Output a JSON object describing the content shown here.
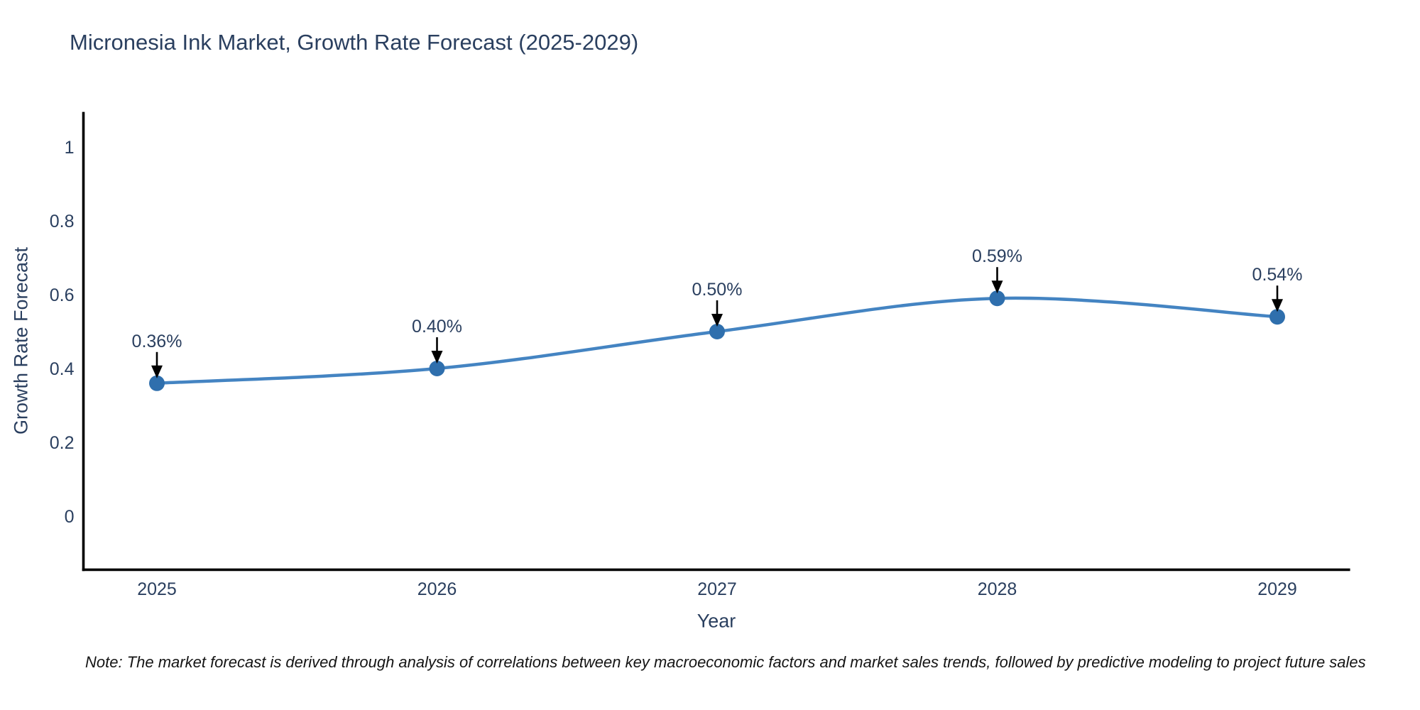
{
  "figure": {
    "title": "Micronesia Ink Market, Growth Rate Forecast (2025-2029)",
    "xlabel": "Year",
    "ylabel": "Growth Rate Forecast",
    "note": "Note: The market forecast is derived through analysis of correlations between key macroeconomic factors and market sales trends, followed by predictive modeling to project future sales"
  },
  "chart_data": {
    "type": "line",
    "title": "Micronesia Ink Market, Growth Rate Forecast (2025-2029)",
    "xlabel": "Year",
    "ylabel": "Growth Rate Forecast",
    "x": [
      2025,
      2026,
      2027,
      2028,
      2029
    ],
    "series": [
      {
        "name": "Growth Rate Forecast",
        "values": [
          0.36,
          0.4,
          0.5,
          0.59,
          0.54
        ],
        "point_labels": [
          "0.36%",
          "0.40%",
          "0.50%",
          "0.59%",
          "0.54%"
        ]
      }
    ],
    "line_shape": "spline",
    "markers": true,
    "annotation_arrows": true,
    "xticks": [
      "2025",
      "2026",
      "2027",
      "2028",
      "2029"
    ],
    "yticks": [
      0,
      0.2,
      0.4,
      0.6,
      0.8,
      1
    ],
    "ylim": [
      -0.145,
      1.095
    ],
    "xlim": [
      2024.74,
      2029.26
    ],
    "grid": false,
    "legend_position": "none",
    "colors": {
      "line": "#4484c2",
      "marker": "#2f6fad",
      "axis": "#000000",
      "tick_text": "#2a3f5f",
      "annotation_text": "#2a3f5f",
      "arrow": "#000000",
      "note_text": "#141414",
      "background": "#ffffff"
    }
  }
}
